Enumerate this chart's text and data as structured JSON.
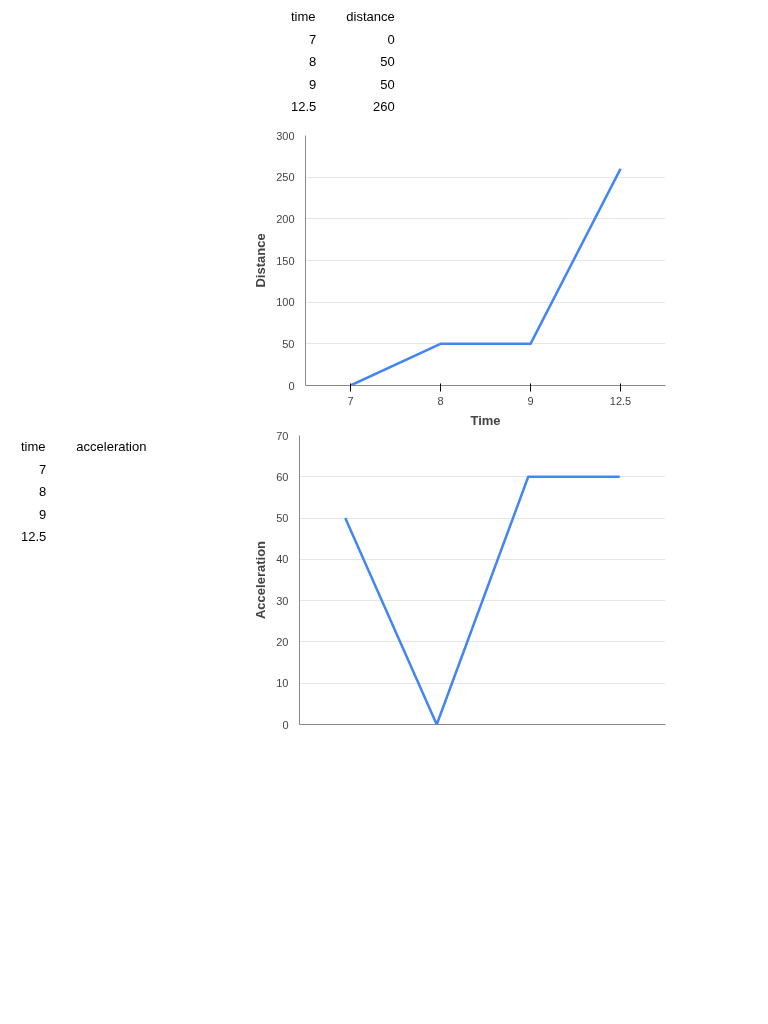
{
  "chart_data": [
    {
      "type": "line",
      "xlabel": "Time",
      "ylabel": "Distance",
      "categories": [
        "7",
        "8",
        "9",
        "12.5"
      ],
      "series": [
        {
          "color": "#4285f4",
          "values": [
            0,
            50,
            50,
            260
          ]
        }
      ],
      "ylim": [
        0,
        300
      ],
      "yticks": [
        0,
        50,
        100,
        150,
        200,
        250,
        300
      ],
      "grid": "y",
      "marker": "none",
      "line_style": "solid",
      "annotations": [
        "time",
        "distance",
        "7",
        "0",
        "8",
        "50",
        "9",
        "50",
        "12.5",
        "260"
      ]
    },
    {
      "type": "line",
      "ylabel": "Acceleration",
      "categories": [
        null,
        null,
        null,
        null
      ],
      "series": [
        {
          "color": "#4285f4",
          "values": [
            50,
            0,
            60,
            60
          ]
        }
      ],
      "ylim": [
        0,
        70
      ],
      "yticks": [
        0,
        10,
        20,
        30,
        40,
        50,
        60,
        70
      ],
      "grid": "y",
      "marker": "none",
      "line_style": "solid",
      "annotations": [
        "time",
        "acceleration",
        "7",
        "8",
        "9",
        "12.5"
      ]
    }
  ]
}
